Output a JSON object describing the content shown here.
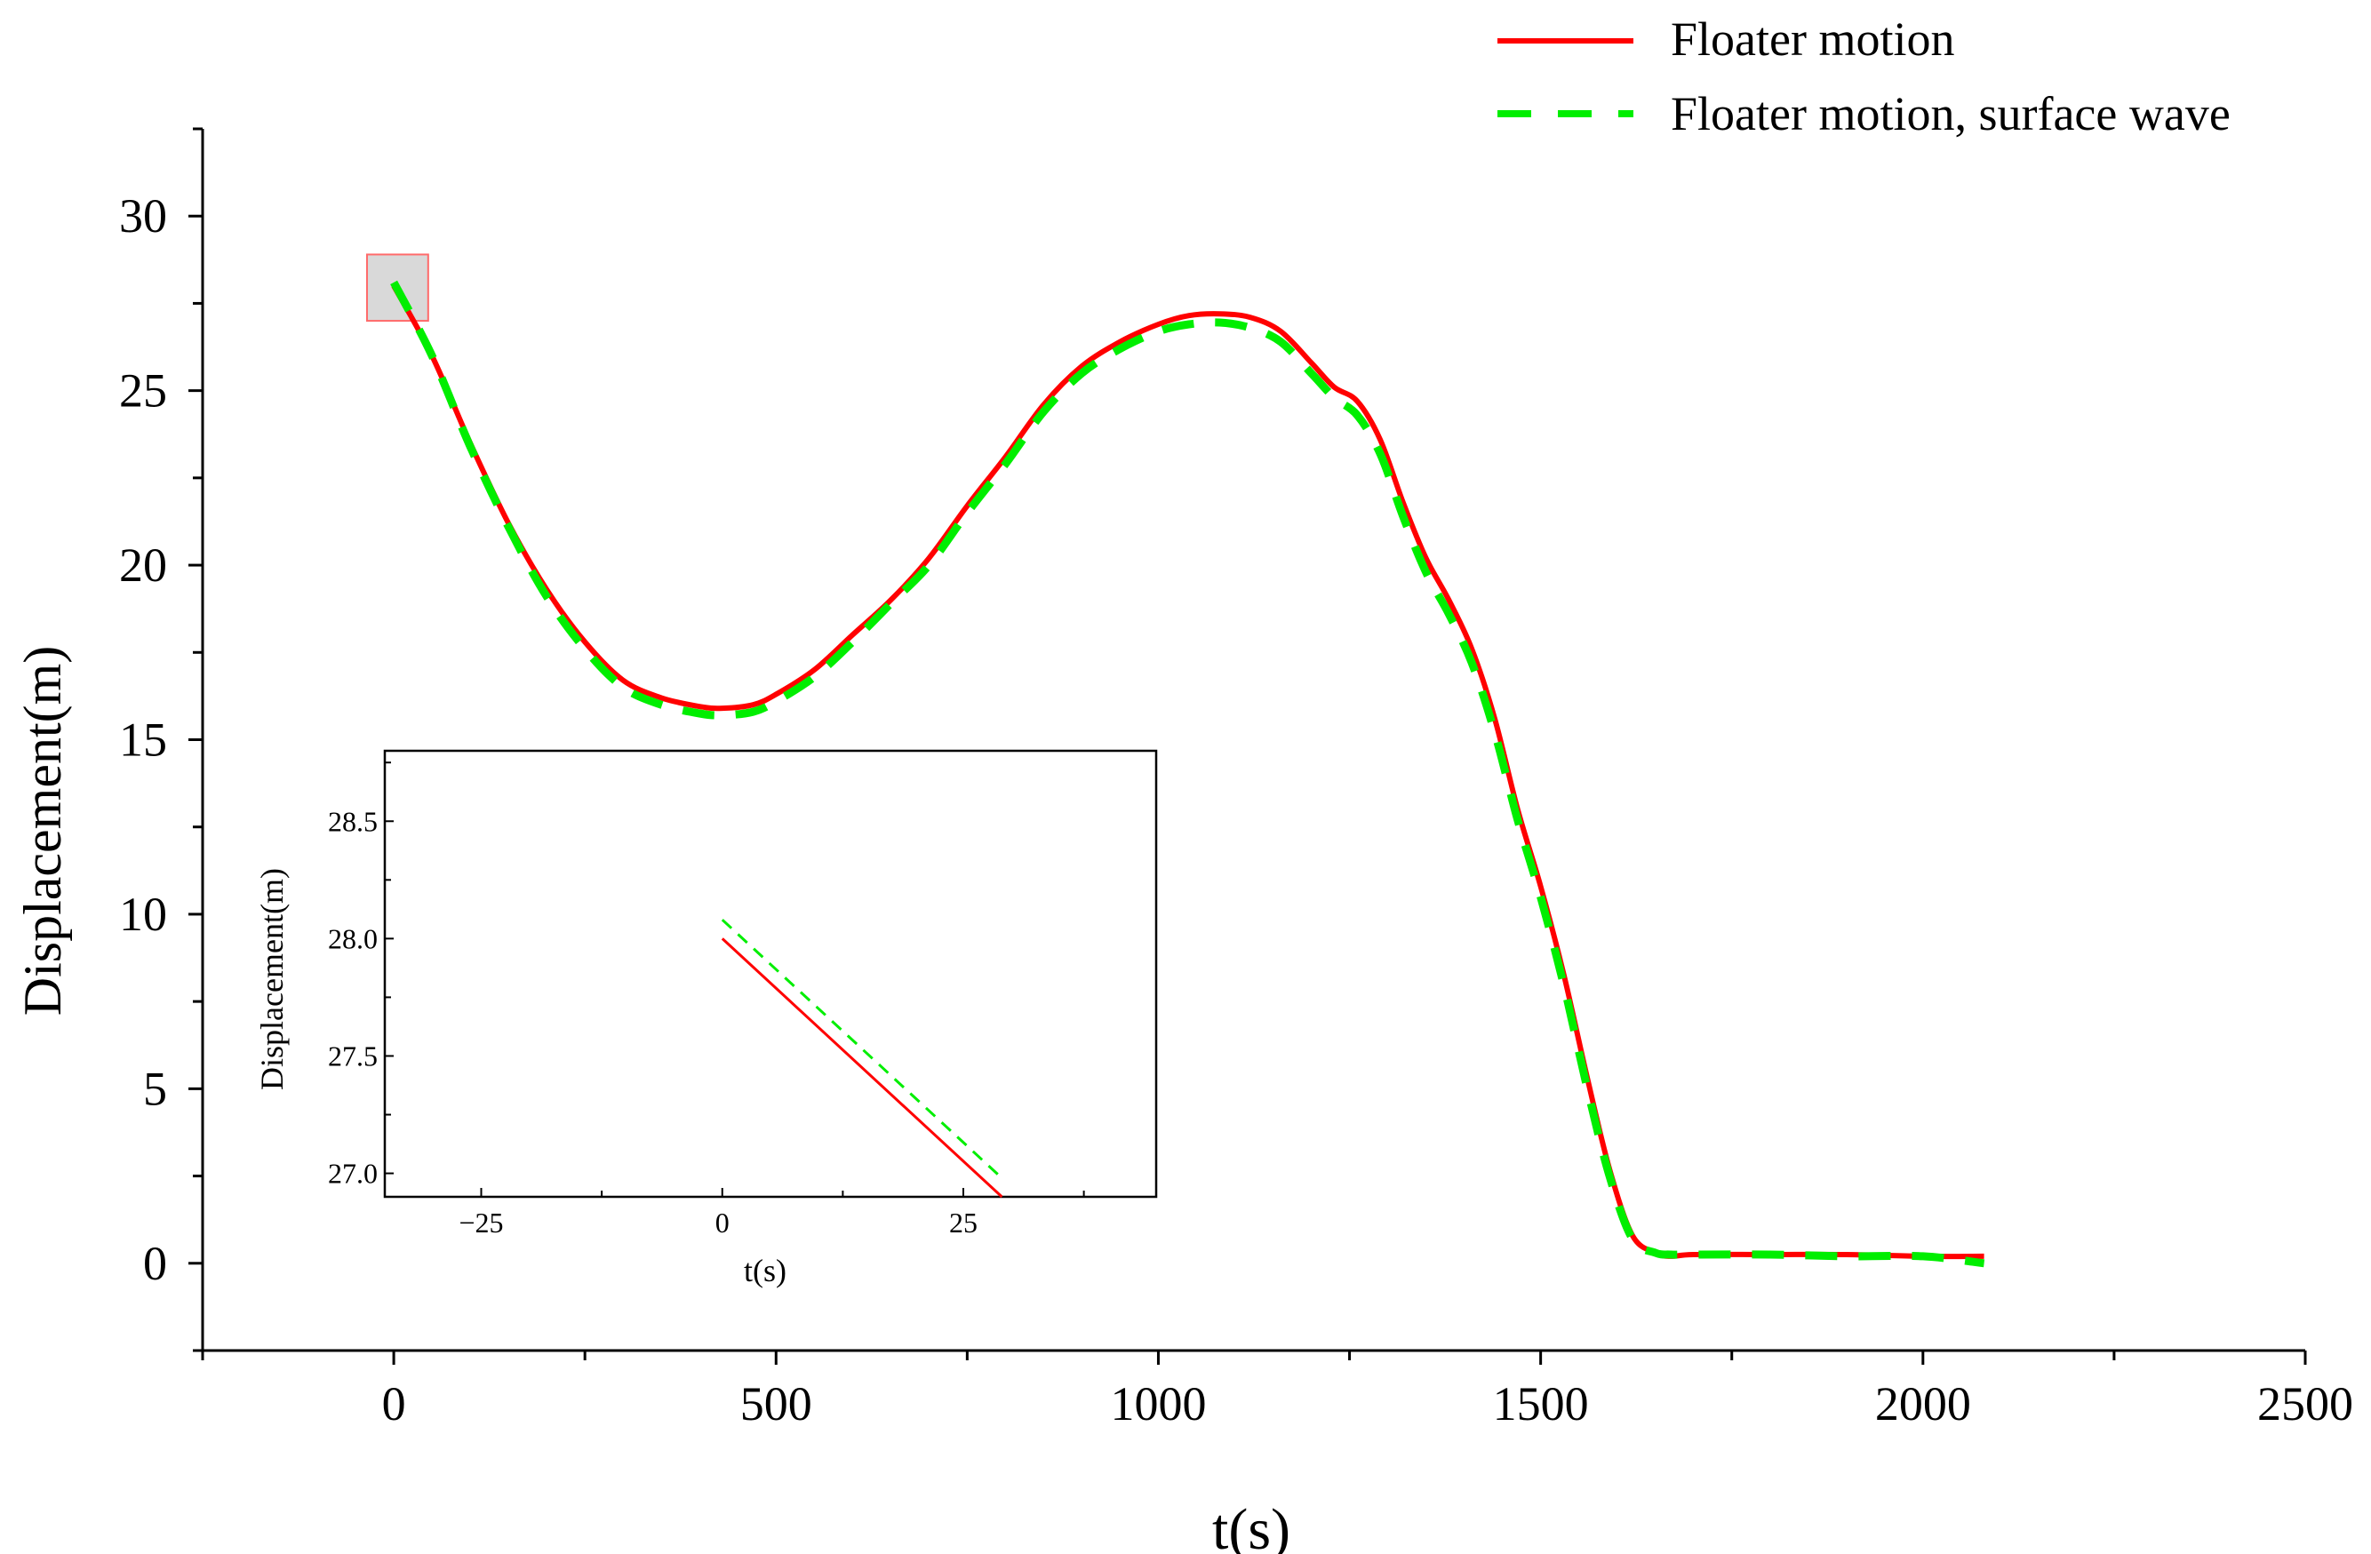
{
  "chart_data": [
    {
      "type": "line",
      "title": "",
      "xlabel": "t(s)",
      "ylabel": "Displacement(m)",
      "xlim": [
        -250,
        2500
      ],
      "ylim": [
        -2.5,
        32.5
      ],
      "xticks": [
        0,
        500,
        1000,
        1500,
        2000,
        2500
      ],
      "yticks": [
        0,
        5,
        10,
        15,
        20,
        25,
        30
      ],
      "xtick_labels": [
        "0",
        "500",
        "1000",
        "1500",
        "2000",
        "2500"
      ],
      "ytick_labels": [
        "0",
        "5",
        "10",
        "15",
        "20",
        "25",
        "30"
      ],
      "grid": false,
      "legend_position": "top-right",
      "series": [
        {
          "name": "Floater motion",
          "color": "#ff0000",
          "dash": "solid",
          "x": [
            0,
            50,
            100,
            150,
            200,
            250,
            300,
            350,
            400,
            430,
            470,
            500,
            550,
            600,
            650,
            700,
            750,
            800,
            850,
            900,
            950,
            1000,
            1040,
            1080,
            1120,
            1160,
            1200,
            1230,
            1260,
            1290,
            1320,
            1350,
            1380,
            1410,
            1440,
            1470,
            1500,
            1530,
            1560,
            1590,
            1620,
            1650,
            1670,
            1700,
            1800,
            1900,
            2000,
            2080
          ],
          "y": [
            28.0,
            26.0,
            23.5,
            21.2,
            19.3,
            17.8,
            16.7,
            16.2,
            15.95,
            15.9,
            16.0,
            16.3,
            17.0,
            18.0,
            19.0,
            20.2,
            21.7,
            23.1,
            24.6,
            25.7,
            26.4,
            26.9,
            27.15,
            27.2,
            27.1,
            26.7,
            25.8,
            25.1,
            24.7,
            23.6,
            21.8,
            20.2,
            19.0,
            17.6,
            15.6,
            13.0,
            10.8,
            8.3,
            5.4,
            2.7,
            0.8,
            0.3,
            0.2,
            0.25,
            0.25,
            0.25,
            0.2,
            0.2
          ]
        },
        {
          "name": "Floater motion, surface wave",
          "color": "#00ee00",
          "dash": "dashed",
          "x": [
            0,
            50,
            100,
            150,
            200,
            250,
            300,
            350,
            400,
            430,
            470,
            500,
            550,
            600,
            650,
            700,
            750,
            800,
            850,
            900,
            950,
            1000,
            1040,
            1080,
            1120,
            1160,
            1200,
            1230,
            1260,
            1290,
            1320,
            1350,
            1380,
            1410,
            1440,
            1470,
            1500,
            1530,
            1560,
            1590,
            1620,
            1650,
            1670,
            1700,
            1800,
            1900,
            2000,
            2080
          ],
          "y": [
            28.1,
            26.0,
            23.4,
            21.1,
            19.1,
            17.6,
            16.5,
            16.0,
            15.75,
            15.7,
            15.8,
            16.1,
            16.8,
            17.8,
            18.9,
            20.0,
            21.5,
            22.9,
            24.4,
            25.5,
            26.2,
            26.7,
            26.9,
            26.95,
            26.8,
            26.4,
            25.5,
            24.8,
            24.3,
            23.2,
            21.4,
            19.8,
            18.6,
            17.2,
            15.2,
            12.7,
            10.5,
            8.0,
            5.1,
            2.5,
            0.7,
            0.3,
            0.25,
            0.25,
            0.25,
            0.2,
            0.2,
            0.0
          ]
        }
      ],
      "highlight_box": {
        "x": [
          -35,
          45
        ],
        "y": [
          27.0,
          28.9
        ]
      }
    },
    {
      "type": "line",
      "title": "",
      "xlabel": "t(s)",
      "ylabel": "Displacement(m)",
      "xlim": [
        -35,
        45
      ],
      "ylim": [
        26.9,
        28.8
      ],
      "xticks": [
        -25,
        0,
        25
      ],
      "yticks": [
        27.0,
        27.5,
        28.0,
        28.5
      ],
      "xtick_labels": [
        "−25",
        "0",
        "25"
      ],
      "ytick_labels": [
        "27.0",
        "27.5",
        "28.0",
        "28.5"
      ],
      "grid": false,
      "series": [
        {
          "name": "Floater motion",
          "color": "#ff0000",
          "dash": "solid",
          "x": [
            0,
            29
          ],
          "y": [
            28.0,
            26.9
          ]
        },
        {
          "name": "Floater motion, surface wave",
          "color": "#00ee00",
          "dash": "dashed",
          "x": [
            0,
            29
          ],
          "y": [
            28.08,
            26.98
          ]
        }
      ]
    }
  ]
}
